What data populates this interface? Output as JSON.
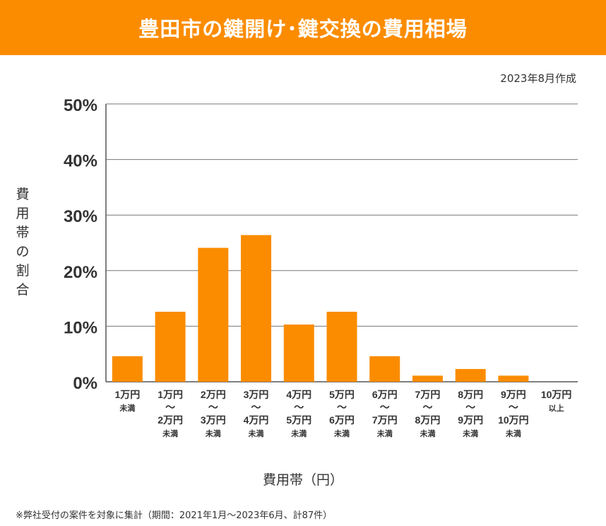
{
  "header": {
    "title": "豊田市の鍵開け･鍵交換の費用相場"
  },
  "date_note": "2023年8月作成",
  "footnote": "※弊社受付の案件を対象に集計（期間：2021年1月～2023年6月、計87件）",
  "chart_data": {
    "type": "bar",
    "title": "豊田市の鍵開け･鍵交換の費用相場",
    "ylabel": "費用帯の割合",
    "xlabel": "費用帯（円）",
    "ylim": [
      0,
      50
    ],
    "yticks": [
      "0%",
      "10%",
      "20%",
      "30%",
      "40%",
      "50%"
    ],
    "grid": true,
    "bar_color": "#fb8c00",
    "categories": [
      [
        "1万円",
        "未満"
      ],
      [
        "1万円",
        "～",
        "2万円",
        "未満"
      ],
      [
        "2万円",
        "～",
        "3万円",
        "未満"
      ],
      [
        "3万円",
        "～",
        "4万円",
        "未満"
      ],
      [
        "4万円",
        "～",
        "5万円",
        "未満"
      ],
      [
        "5万円",
        "～",
        "6万円",
        "未満"
      ],
      [
        "6万円",
        "～",
        "7万円",
        "未満"
      ],
      [
        "7万円",
        "～",
        "8万円",
        "未満"
      ],
      [
        "8万円",
        "～",
        "9万円",
        "未満"
      ],
      [
        "9万円",
        "～",
        "10万円",
        "未満"
      ],
      [
        "10万円",
        "以上"
      ]
    ],
    "values": [
      4.6,
      12.6,
      24.1,
      26.4,
      10.3,
      12.6,
      4.6,
      1.1,
      2.3,
      1.1,
      0
    ]
  }
}
